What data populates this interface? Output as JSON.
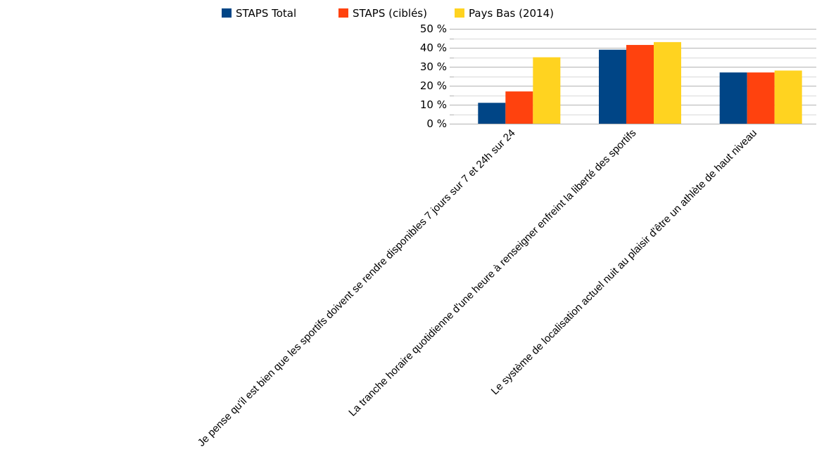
{
  "chart_data": {
    "type": "bar",
    "categories": [
      "Je pense qu'il est bien que les sportifs doivent se rendre disponibles 7 jours sur 7 et 24h sur 24",
      "La tranche horaire quotidienne d'une heure à renseigner enfreint la liberté des sportifs",
      "Le système de localisation actuel nuit au plaisir d'être un athlète de haut niveau"
    ],
    "series": [
      {
        "name": "STAPS Total",
        "color": "#004586",
        "values": [
          11,
          39,
          27
        ]
      },
      {
        "name": "STAPS (ciblés)",
        "color": "#ff420e",
        "values": [
          17,
          41.5,
          27
        ]
      },
      {
        "name": "Pays Bas (2014)",
        "color": "#ffd320",
        "values": [
          35,
          43,
          28
        ]
      }
    ],
    "ylim": [
      0,
      50
    ],
    "yticks": [
      "0 %",
      "10 %",
      "20 %",
      "30 %",
      "40 %",
      "50 %"
    ],
    "grid": true,
    "legend": "top-center"
  }
}
